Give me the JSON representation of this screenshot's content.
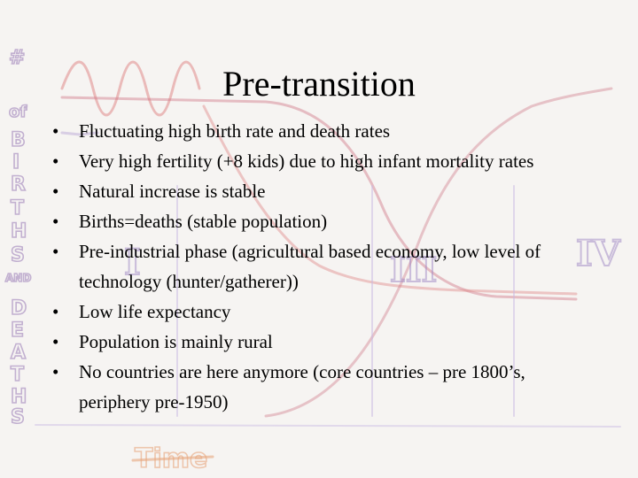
{
  "slide": {
    "title": "Pre-transition",
    "bullet_glyph": "•",
    "bullets": [
      "Fluctuating high birth rate and death rates",
      "Very high fertility (+8 kids) due to high infant mortality rates",
      "Natural increase is stable",
      "Births=deaths (stable population)",
      "Pre-industrial phase (agricultural based economy, low level of technology (hunter/gatherer))",
      "Low life expectancy",
      "Population is mainly rural",
      "No countries are here anymore (core countries – pre 1800’s, periphery pre-1950)"
    ]
  },
  "background_sketch": {
    "vertical_axis_label": "# of BIRTHS AND DEATHS",
    "horizontal_axis_label": "Time",
    "stage_numerals": [
      "I",
      "II",
      "III",
      "IV"
    ],
    "colors": {
      "purple_axis": "#8f6fb0",
      "birth_curve": "#d07888",
      "death_curve": "#e08a8a",
      "population_line": "#b9a7d6",
      "time_label": "#e8a77e"
    }
  }
}
